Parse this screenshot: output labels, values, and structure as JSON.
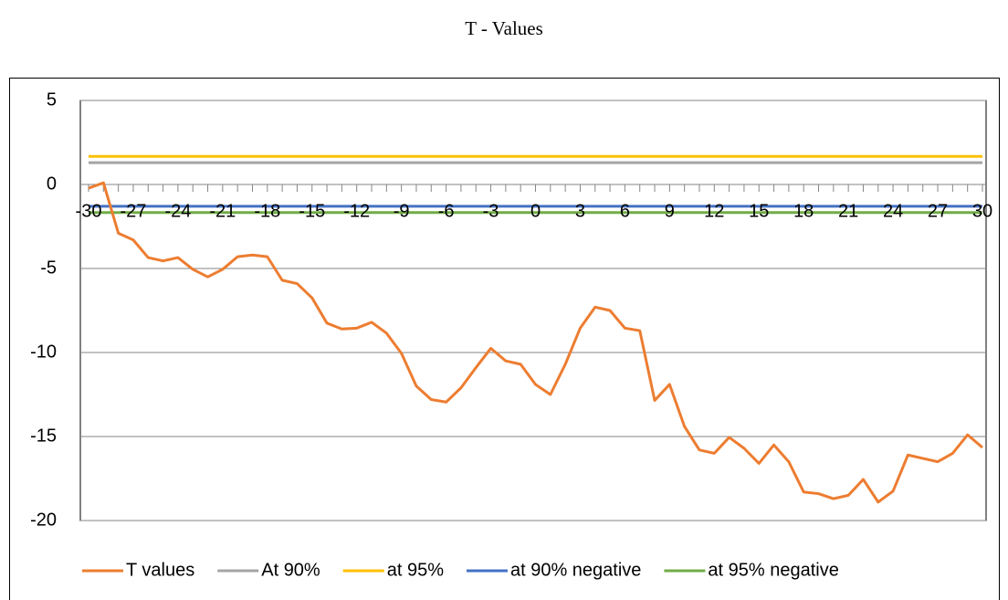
{
  "chart_data": {
    "type": "line",
    "title": "T - Values",
    "x": [
      -30,
      -29,
      -28,
      -27,
      -26,
      -25,
      -24,
      -23,
      -22,
      -21,
      -20,
      -19,
      -18,
      -17,
      -16,
      -15,
      -14,
      -13,
      -12,
      -11,
      -10,
      -9,
      -8,
      -7,
      -6,
      -5,
      -4,
      -3,
      -2,
      -1,
      0,
      1,
      2,
      3,
      4,
      5,
      6,
      7,
      8,
      9,
      10,
      11,
      12,
      13,
      14,
      15,
      16,
      17,
      18,
      19,
      20,
      21,
      22,
      23,
      24,
      25,
      26,
      27,
      28,
      29,
      30
    ],
    "xlim": [
      -30,
      30
    ],
    "xticks": [
      -30,
      -27,
      -24,
      -21,
      -18,
      -15,
      -12,
      -9,
      -6,
      -3,
      0,
      3,
      6,
      9,
      12,
      15,
      18,
      21,
      24,
      27,
      30
    ],
    "ylim": [
      -20,
      5
    ],
    "yticks": [
      5,
      0,
      -5,
      -10,
      -15,
      -20
    ],
    "grid": true,
    "legend": "bottom",
    "series": [
      {
        "name": "T values",
        "color": "#ed7d31",
        "values": [
          -0.22,
          0.1,
          -2.9,
          -3.3,
          -4.35,
          -4.55,
          -4.35,
          -5.05,
          -5.5,
          -5.05,
          -4.3,
          -4.2,
          -4.3,
          -5.7,
          -5.9,
          -6.75,
          -8.25,
          -8.6,
          -8.55,
          -8.2,
          -8.85,
          -10.05,
          -12,
          -12.8,
          -12.95,
          -12.1,
          -10.9,
          -9.75,
          -10.5,
          -10.7,
          -11.9,
          -12.5,
          -10.7,
          -8.55,
          -7.3,
          -7.5,
          -8.55,
          -8.7,
          -12.85,
          -11.9,
          -14.4,
          -15.8,
          -16,
          -15.05,
          -15.7,
          -16.6,
          -15.5,
          -16.5,
          -18.3,
          -18.4,
          -18.7,
          -18.5,
          -17.55,
          -18.9,
          -18.25,
          -16.1,
          -16.3,
          -16.5,
          -16,
          -14.9,
          -15.65
        ]
      },
      {
        "name": "At 90%",
        "color": "#a5a5a5",
        "values": [
          1.3,
          1.3,
          1.3,
          1.3,
          1.3,
          1.3,
          1.3,
          1.3,
          1.3,
          1.3,
          1.3,
          1.3,
          1.3,
          1.3,
          1.3,
          1.3,
          1.3,
          1.3,
          1.3,
          1.3,
          1.3,
          1.3,
          1.3,
          1.3,
          1.3,
          1.3,
          1.3,
          1.3,
          1.3,
          1.3,
          1.3,
          1.3,
          1.3,
          1.3,
          1.3,
          1.3,
          1.3,
          1.3,
          1.3,
          1.3,
          1.3,
          1.3,
          1.3,
          1.3,
          1.3,
          1.3,
          1.3,
          1.3,
          1.3,
          1.3,
          1.3,
          1.3,
          1.3,
          1.3,
          1.3,
          1.3,
          1.3,
          1.3,
          1.3,
          1.3,
          1.3
        ]
      },
      {
        "name": "at 95%",
        "color": "#ffc000",
        "values": [
          1.67,
          1.67,
          1.67,
          1.67,
          1.67,
          1.67,
          1.67,
          1.67,
          1.67,
          1.67,
          1.67,
          1.67,
          1.67,
          1.67,
          1.67,
          1.67,
          1.67,
          1.67,
          1.67,
          1.67,
          1.67,
          1.67,
          1.67,
          1.67,
          1.67,
          1.67,
          1.67,
          1.67,
          1.67,
          1.67,
          1.67,
          1.67,
          1.67,
          1.67,
          1.67,
          1.67,
          1.67,
          1.67,
          1.67,
          1.67,
          1.67,
          1.67,
          1.67,
          1.67,
          1.67,
          1.67,
          1.67,
          1.67,
          1.67,
          1.67,
          1.67,
          1.67,
          1.67,
          1.67,
          1.67,
          1.67,
          1.67,
          1.67,
          1.67,
          1.67,
          1.67
        ]
      },
      {
        "name": "at 90% negative",
        "color": "#4472c4",
        "values": [
          -1.3,
          -1.3,
          -1.3,
          -1.3,
          -1.3,
          -1.3,
          -1.3,
          -1.3,
          -1.3,
          -1.3,
          -1.3,
          -1.3,
          -1.3,
          -1.3,
          -1.3,
          -1.3,
          -1.3,
          -1.3,
          -1.3,
          -1.3,
          -1.3,
          -1.3,
          -1.3,
          -1.3,
          -1.3,
          -1.3,
          -1.3,
          -1.3,
          -1.3,
          -1.3,
          -1.3,
          -1.3,
          -1.3,
          -1.3,
          -1.3,
          -1.3,
          -1.3,
          -1.3,
          -1.3,
          -1.3,
          -1.3,
          -1.3,
          -1.3,
          -1.3,
          -1.3,
          -1.3,
          -1.3,
          -1.3,
          -1.3,
          -1.3,
          -1.3,
          -1.3,
          -1.3,
          -1.3,
          -1.3,
          -1.3,
          -1.3,
          -1.3,
          -1.3,
          -1.3,
          -1.3
        ]
      },
      {
        "name": "at 95% negative",
        "color": "#70ad47",
        "values": [
          -1.67,
          -1.67,
          -1.67,
          -1.67,
          -1.67,
          -1.67,
          -1.67,
          -1.67,
          -1.67,
          -1.67,
          -1.67,
          -1.67,
          -1.67,
          -1.67,
          -1.67,
          -1.67,
          -1.67,
          -1.67,
          -1.67,
          -1.67,
          -1.67,
          -1.67,
          -1.67,
          -1.67,
          -1.67,
          -1.67,
          -1.67,
          -1.67,
          -1.67,
          -1.67,
          -1.67,
          -1.67,
          -1.67,
          -1.67,
          -1.67,
          -1.67,
          -1.67,
          -1.67,
          -1.67,
          -1.67,
          -1.67,
          -1.67,
          -1.67,
          -1.67,
          -1.67,
          -1.67,
          -1.67,
          -1.67,
          -1.67,
          -1.67,
          -1.67,
          -1.67,
          -1.67,
          -1.67,
          -1.67,
          -1.67,
          -1.67,
          -1.67,
          -1.67,
          -1.67,
          -1.67
        ]
      }
    ]
  }
}
